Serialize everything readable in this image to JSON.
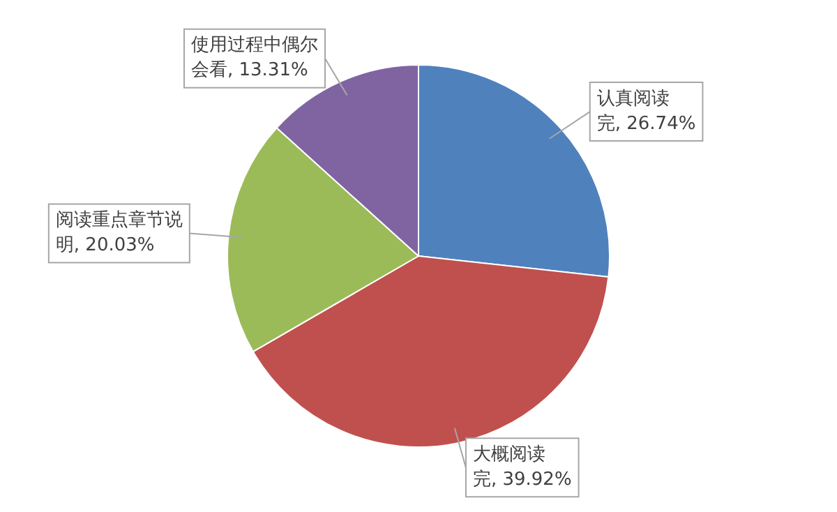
{
  "chart_data": {
    "type": "pie",
    "categories": [
      "认真阅读完",
      "大概阅读完",
      "阅读重点章节说明",
      "使用过程中偶尔会看"
    ],
    "values": [
      26.74,
      39.92,
      20.03,
      13.31
    ],
    "colors": [
      "#4f81bd",
      "#c0504d",
      "#9bbb59",
      "#8064a2"
    ],
    "value_labels": [
      "26.74%",
      "39.92%",
      "20.03%",
      "13.31%"
    ],
    "legend": false
  }
}
